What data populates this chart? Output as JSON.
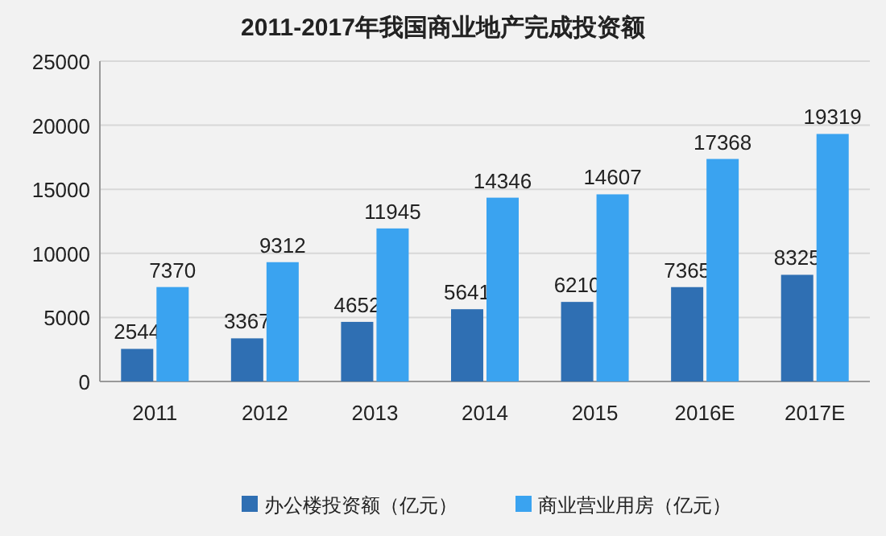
{
  "chart_data": {
    "type": "bar",
    "title": "2011-2017年我国商业地产完成投资额",
    "categories": [
      "2011",
      "2012",
      "2013",
      "2014",
      "2015",
      "2016E",
      "2017E"
    ],
    "series": [
      {
        "name": "办公楼投资额（亿元）",
        "color": "#2f6fb3",
        "values": [
          2544,
          3367,
          4652,
          5641,
          6210,
          7365,
          8325
        ]
      },
      {
        "name": "商业营业用房（亿元）",
        "color": "#3aa3f0",
        "values": [
          7370,
          9312,
          11945,
          14346,
          14607,
          17368,
          19319
        ]
      }
    ],
    "ylim": [
      0,
      25000
    ],
    "yticks": [
      0,
      5000,
      10000,
      15000,
      20000,
      25000
    ],
    "grid": "y",
    "data_labels": true,
    "legend": "bottom"
  }
}
